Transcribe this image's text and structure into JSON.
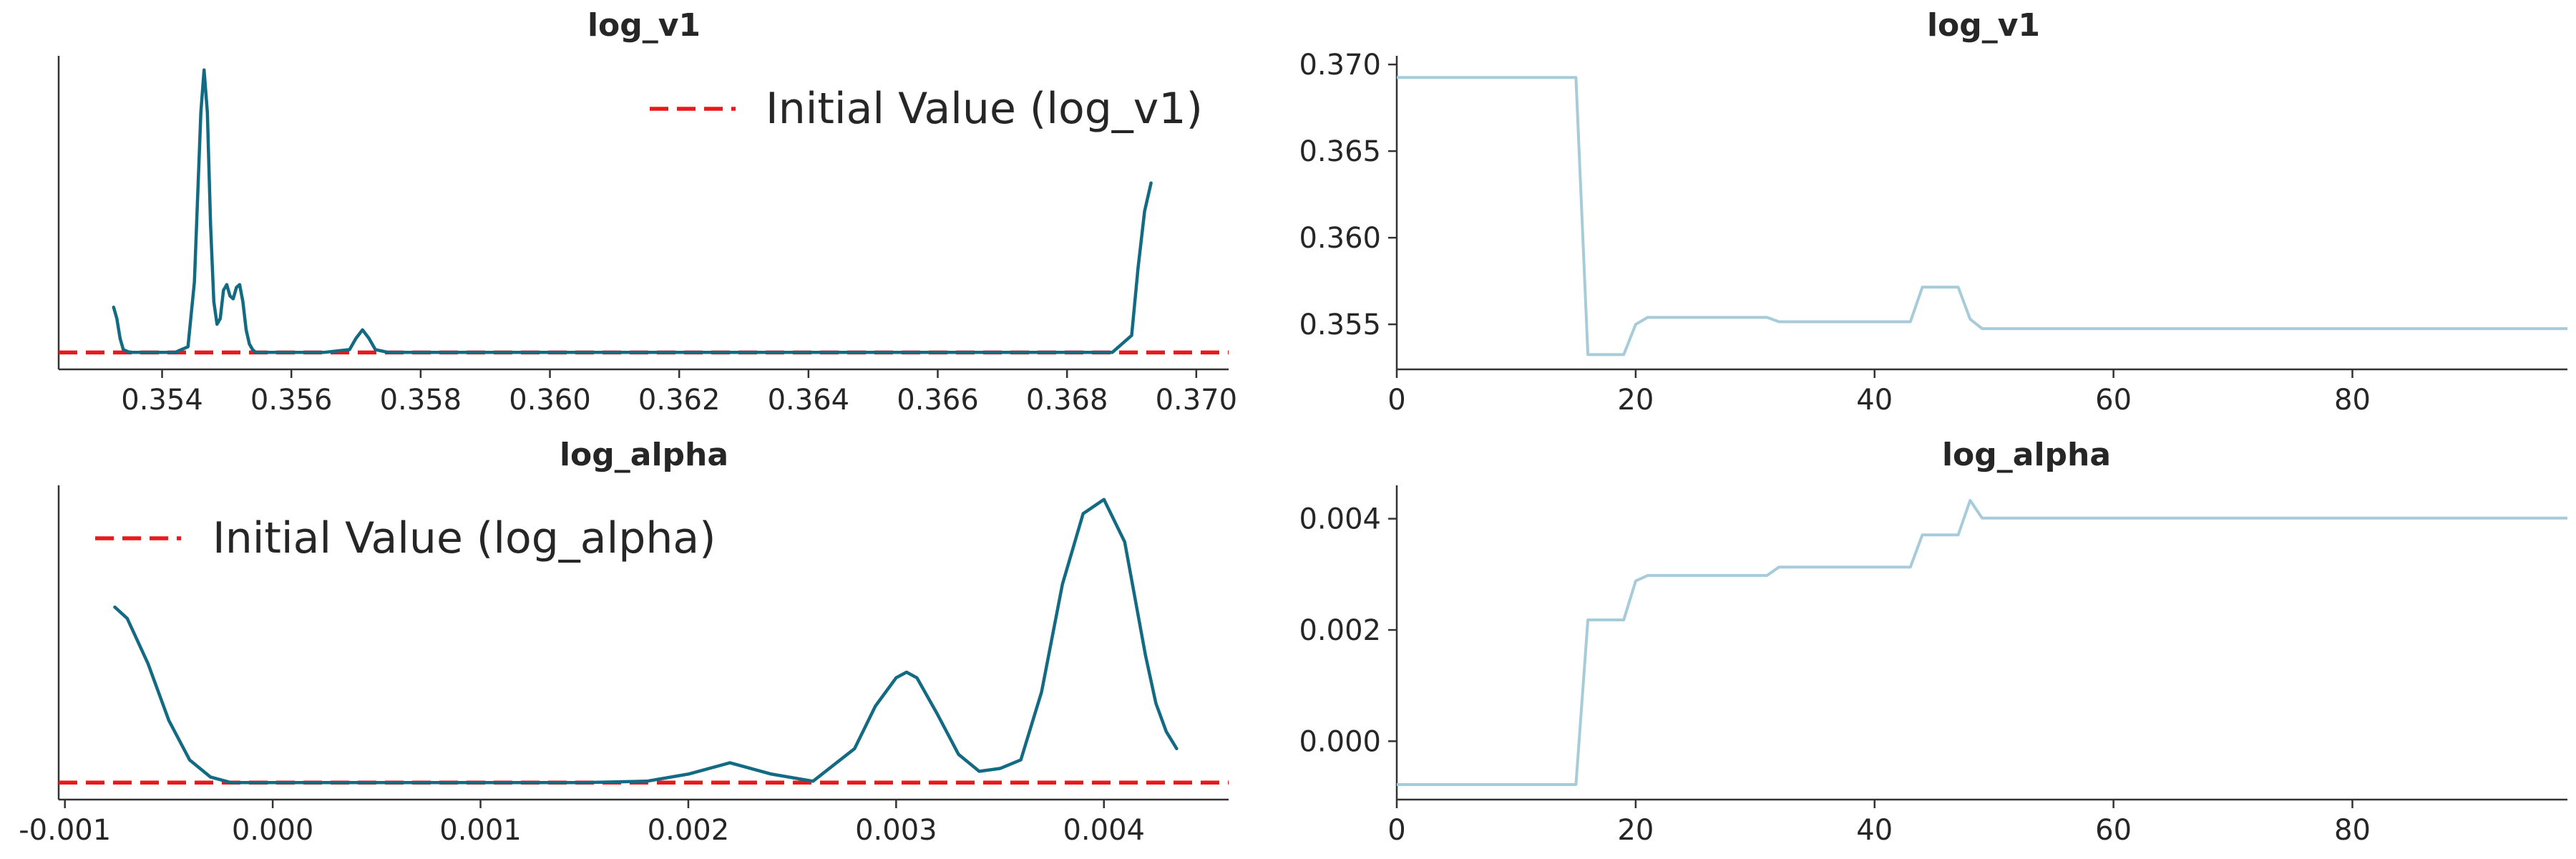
{
  "colors": {
    "kde": "#136a83",
    "trace": "#a6cbd9",
    "initial": "#e8191a"
  },
  "chart_data": [
    {
      "panel": "density-log-v1",
      "type": "line",
      "title": "log_v1",
      "xlim": [
        0.3524,
        0.3705
      ],
      "ylim": [
        -0.06,
        1.05
      ],
      "xticks": [
        "0.354",
        "0.356",
        "0.358",
        "0.360",
        "0.362",
        "0.364",
        "0.366",
        "0.368",
        "0.370"
      ],
      "xtick_values": [
        0.354,
        0.356,
        0.358,
        0.36,
        0.362,
        0.364,
        0.366,
        0.368,
        0.37
      ],
      "yticks_visible": false,
      "legend": {
        "label": "Initial Value (log_v1)",
        "position": "top-right"
      },
      "initial_value_line": {
        "style": "dashed",
        "y": 0
      },
      "series": [
        {
          "x": [
            0.35325,
            0.3533,
            0.35335,
            0.3534,
            0.3535,
            0.3536,
            0.3539,
            0.3542,
            0.3544,
            0.3545,
            0.3546,
            0.35465,
            0.3547,
            0.35475,
            0.3548,
            0.35485,
            0.3549,
            0.35495,
            0.355,
            0.35505,
            0.3551,
            0.35515,
            0.3552,
            0.35525,
            0.3553,
            0.35535,
            0.3554,
            0.35545,
            0.3555,
            0.3556,
            0.3558,
            0.3565,
            0.3569,
            0.357,
            0.3571,
            0.3572,
            0.3573,
            0.3575,
            0.36,
            0.365,
            0.3687,
            0.369,
            0.3691,
            0.3692,
            0.3693
          ],
          "y": [
            0.16,
            0.12,
            0.05,
            0.01,
            0.0,
            0.0,
            0.0,
            0.0,
            0.02,
            0.25,
            0.85,
            1.0,
            0.85,
            0.45,
            0.18,
            0.1,
            0.12,
            0.22,
            0.24,
            0.2,
            0.19,
            0.23,
            0.24,
            0.18,
            0.08,
            0.03,
            0.01,
            0.0,
            0.0,
            0.0,
            0.0,
            0.0,
            0.01,
            0.05,
            0.08,
            0.05,
            0.01,
            0.0,
            0.0,
            0.0,
            0.0,
            0.06,
            0.3,
            0.5,
            0.6
          ]
        }
      ]
    },
    {
      "panel": "trace-log-v1",
      "type": "line",
      "title": "log_v1",
      "xlim": [
        0,
        98
      ],
      "ylim": [
        0.3524,
        0.3705
      ],
      "xticks": [
        "0",
        "20",
        "40",
        "60",
        "80"
      ],
      "xtick_values": [
        0,
        20,
        40,
        60,
        80
      ],
      "yticks": [
        "0.355",
        "0.360",
        "0.365",
        "0.370"
      ],
      "ytick_values": [
        0.355,
        0.36,
        0.365,
        0.37
      ],
      "series": [
        {
          "x": [
            0,
            15,
            16,
            19,
            20,
            21,
            31,
            32,
            43,
            44,
            47,
            48,
            49,
            98
          ],
          "y": [
            0.36925,
            0.36925,
            0.35325,
            0.35325,
            0.355,
            0.3554,
            0.3554,
            0.35515,
            0.35515,
            0.35715,
            0.35715,
            0.3553,
            0.35475,
            0.35475
          ]
        }
      ]
    },
    {
      "panel": "density-log-alpha",
      "type": "line",
      "title": "log_alpha",
      "xlim": [
        -0.00103,
        0.0046
      ],
      "ylim": [
        -0.06,
        1.05
      ],
      "xticks": [
        "-0.001",
        "0.000",
        "0.001",
        "0.002",
        "0.003",
        "0.004"
      ],
      "xtick_values": [
        -0.001,
        0.0,
        0.001,
        0.002,
        0.003,
        0.004
      ],
      "yticks_visible": false,
      "legend": {
        "label": "Initial Value (log_alpha)",
        "position": "top-left"
      },
      "initial_value_line": {
        "style": "dashed",
        "y": 0
      },
      "series": [
        {
          "x": [
            -0.00076,
            -0.0007,
            -0.0006,
            -0.0005,
            -0.0004,
            -0.0003,
            -0.0002,
            0.0,
            0.0005,
            0.001,
            0.0015,
            0.0018,
            0.002,
            0.0022,
            0.0024,
            0.0026,
            0.0028,
            0.0029,
            0.003,
            0.00305,
            0.0031,
            0.0032,
            0.0033,
            0.0034,
            0.0035,
            0.0036,
            0.0037,
            0.0038,
            0.0039,
            0.004,
            0.0041,
            0.0042,
            0.00425,
            0.0043,
            0.00435
          ],
          "y": [
            0.62,
            0.58,
            0.42,
            0.22,
            0.08,
            0.02,
            0.0,
            0.0,
            0.0,
            0.0,
            0.0,
            0.005,
            0.03,
            0.07,
            0.03,
            0.005,
            0.12,
            0.27,
            0.37,
            0.39,
            0.37,
            0.24,
            0.1,
            0.04,
            0.05,
            0.08,
            0.32,
            0.7,
            0.95,
            1.0,
            0.85,
            0.45,
            0.28,
            0.18,
            0.12
          ]
        }
      ]
    },
    {
      "panel": "trace-log-alpha",
      "type": "line",
      "title": "log_alpha",
      "xlim": [
        0,
        98
      ],
      "ylim": [
        -0.00105,
        0.0046
      ],
      "xticks": [
        "0",
        "20",
        "40",
        "60",
        "80"
      ],
      "xtick_values": [
        0,
        20,
        40,
        60,
        80
      ],
      "yticks": [
        "0.000",
        "0.002",
        "0.004"
      ],
      "ytick_values": [
        0.0,
        0.002,
        0.004
      ],
      "series": [
        {
          "x": [
            0,
            15,
            16,
            19,
            20,
            21,
            31,
            32,
            43,
            44,
            47,
            48,
            49,
            98
          ],
          "y": [
            -0.00078,
            -0.00078,
            0.00218,
            0.00218,
            0.00288,
            0.00298,
            0.00298,
            0.00313,
            0.00313,
            0.00371,
            0.00371,
            0.00433,
            0.00401,
            0.00401
          ]
        }
      ]
    }
  ]
}
